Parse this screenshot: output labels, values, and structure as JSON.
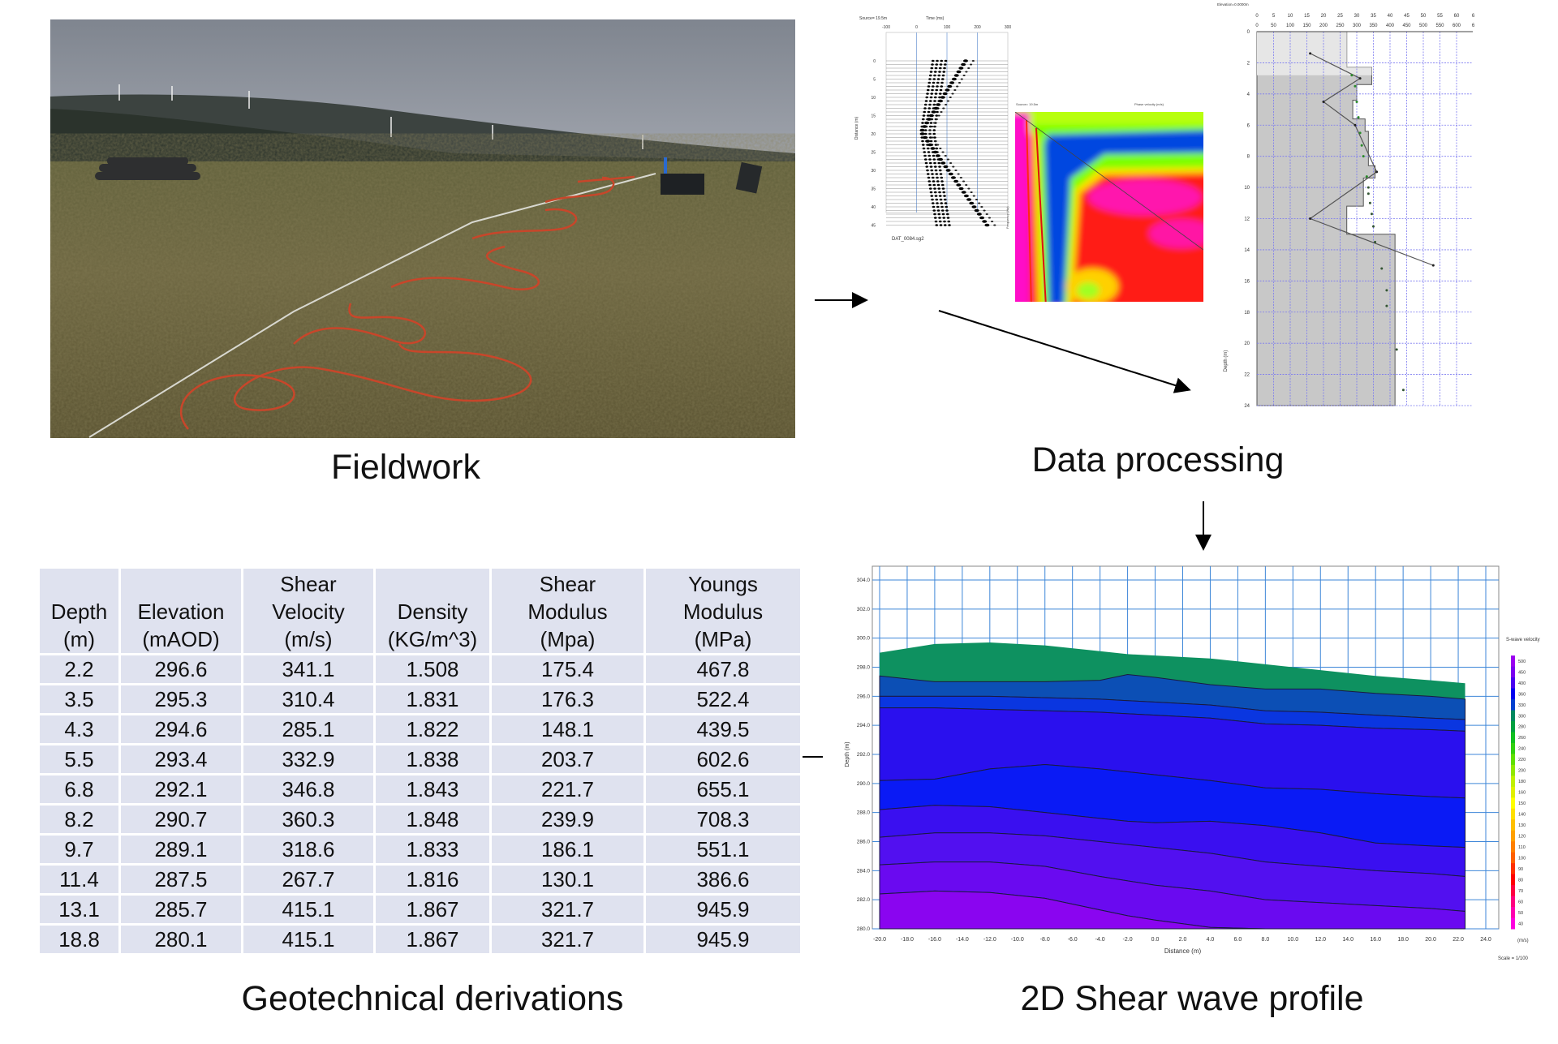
{
  "captions": {
    "fieldwork": "Fieldwork",
    "data_processing": "Data processing",
    "shear_profile": "2D Shear wave profile",
    "geotechnical": "Geotechnical derivations"
  },
  "seismic_traces": {
    "source_label": "Source= 19.5m",
    "time_label": "Time (ms)",
    "time_ticks": [
      "-100",
      "0",
      "100",
      "200",
      "300"
    ],
    "distance_label": "Distance (m)",
    "distance_ticks": [
      "0",
      "5",
      "10",
      "15",
      "20",
      "25",
      "30",
      "35",
      "40",
      "45"
    ],
    "file_label": "DAT_0084.sg2"
  },
  "dispersion": {
    "x_label": "Phase velocity (m/s)",
    "y_label": "Frequency (Hz)",
    "source_label": "Source= 19.5m"
  },
  "vs_profile": {
    "elevation_label": "Elevation=0.0000m",
    "top_ticks_a": [
      "0",
      "5",
      "10",
      "15",
      "20",
      "25",
      "30",
      "35",
      "40",
      "45",
      "50",
      "55",
      "60",
      "6"
    ],
    "top_ticks_b": [
      "0",
      "50",
      "100",
      "150",
      "200",
      "250",
      "300",
      "350",
      "400",
      "450",
      "500",
      "550",
      "600",
      "6"
    ],
    "depth_ticks": [
      "0",
      "2",
      "4",
      "6",
      "8",
      "10",
      "12",
      "14",
      "16",
      "18",
      "20",
      "22",
      "24"
    ],
    "depth_label": "Depth (m)",
    "steps": [
      [
        0,
        2.3,
        270
      ],
      [
        2.3,
        3.4,
        345
      ],
      [
        3.4,
        4.4,
        300
      ],
      [
        4.4,
        5.6,
        288
      ],
      [
        5.6,
        6.4,
        325
      ],
      [
        6.4,
        8.6,
        335
      ],
      [
        8.6,
        9.4,
        355
      ],
      [
        9.4,
        11.2,
        320
      ],
      [
        11.2,
        13.0,
        270
      ],
      [
        13.0,
        24,
        415
      ]
    ],
    "inverted_line": [
      [
        160,
        1.4
      ],
      [
        310,
        3.0
      ],
      [
        200,
        4.5
      ],
      [
        295,
        6.0
      ],
      [
        360,
        9.0
      ],
      [
        160,
        12.0
      ],
      [
        530,
        15.0
      ]
    ],
    "points": [
      [
        285,
        2.8
      ],
      [
        295,
        3.5
      ],
      [
        300,
        4.5
      ],
      [
        305,
        5.5
      ],
      [
        310,
        6.5
      ],
      [
        315,
        7.3
      ],
      [
        320,
        8.0
      ],
      [
        330,
        9.3
      ],
      [
        335,
        10.0
      ],
      [
        335,
        10.4
      ],
      [
        340,
        11.0
      ],
      [
        345,
        11.7
      ],
      [
        350,
        12.5
      ],
      [
        355,
        13.5
      ],
      [
        375,
        15.2
      ],
      [
        390,
        16.6
      ],
      [
        390,
        17.6
      ],
      [
        420,
        20.4
      ],
      [
        440,
        23.0
      ]
    ],
    "x_max": 600,
    "depth_max": 24
  },
  "table": {
    "headers": [
      [
        "Depth",
        "(m)"
      ],
      [
        "Elevation",
        "(mAOD)"
      ],
      [
        "Shear",
        "Velocity",
        "(m/s)"
      ],
      [
        "Density",
        "(KG/m^3)"
      ],
      [
        "Shear",
        "Modulus",
        "(Mpa)"
      ],
      [
        "Youngs",
        "Modulus",
        "(MPa)"
      ]
    ],
    "rows": [
      [
        "2.2",
        "296.6",
        "341.1",
        "1.508",
        "175.4",
        "467.8"
      ],
      [
        "3.5",
        "295.3",
        "310.4",
        "1.831",
        "176.3",
        "522.4"
      ],
      [
        "4.3",
        "294.6",
        "285.1",
        "1.822",
        "148.1",
        "439.5"
      ],
      [
        "5.5",
        "293.4",
        "332.9",
        "1.838",
        "203.7",
        "602.6"
      ],
      [
        "6.8",
        "292.1",
        "346.8",
        "1.843",
        "221.7",
        "655.1"
      ],
      [
        "8.2",
        "290.7",
        "360.3",
        "1.848",
        "239.9",
        "708.3"
      ],
      [
        "9.7",
        "289.1",
        "318.6",
        "1.833",
        "186.1",
        "551.1"
      ],
      [
        "11.4",
        "287.5",
        "267.7",
        "1.816",
        "130.1",
        "386.6"
      ],
      [
        "13.1",
        "285.7",
        "415.1",
        "1.867",
        "321.7",
        "945.9"
      ],
      [
        "18.8",
        "280.1",
        "415.1",
        "1.867",
        "321.7",
        "945.9"
      ]
    ]
  },
  "chart_data": {
    "type": "heatmap",
    "title": "2D Shear wave profile",
    "xlabel": "Distance (m)",
    "ylabel": "Depth (m)",
    "xlim": [
      -20,
      24
    ],
    "ylim": [
      280,
      304
    ],
    "x_ticks": [
      "-20.0",
      "-18.0",
      "-16.0",
      "-14.0",
      "-12.0",
      "-10.0",
      "-8.0",
      "-6.0",
      "-4.0",
      "-2.0",
      "0.0",
      "2.0",
      "4.0",
      "6.0",
      "8.0",
      "10.0",
      "12.0",
      "14.0",
      "16.0",
      "18.0",
      "20.0",
      "22.0",
      "24.0"
    ],
    "y_ticks": [
      "304.0",
      "302.0",
      "300.0",
      "298.0",
      "296.0",
      "294.0",
      "292.0",
      "290.0",
      "288.0",
      "286.0",
      "284.0",
      "282.0",
      "280.0"
    ],
    "legend_title": "S-wave velocity",
    "legend_unit": "(m/s)",
    "legend_values": [
      "500",
      "450",
      "400",
      "360",
      "330",
      "300",
      "280",
      "260",
      "240",
      "220",
      "200",
      "180",
      "160",
      "150",
      "140",
      "130",
      "120",
      "110",
      "100",
      "90",
      "80",
      "70",
      "60",
      "50",
      "40"
    ],
    "legend_colors": [
      "#9a00f0",
      "#7a00f0",
      "#4a00f0",
      "#0000f0",
      "#0040d0",
      "#008860",
      "#00a040",
      "#10c020",
      "#30d010",
      "#60e000",
      "#90e800",
      "#c0f000",
      "#e0f000",
      "#ffff00",
      "#ffe000",
      "#ffc000",
      "#ffa000",
      "#ff8000",
      "#ff6000",
      "#ff3000",
      "#ff0000",
      "#ff0040",
      "#ff0080",
      "#ff00b0",
      "#ff00e0"
    ],
    "scale_label": "Scale = 1/100",
    "x_samples": [
      -20,
      -16,
      -12,
      -8,
      -4,
      -2,
      0,
      4,
      8,
      12,
      16,
      20,
      22.5
    ],
    "surface": [
      299.0,
      299.6,
      299.7,
      299.5,
      299.1,
      298.9,
      298.8,
      298.6,
      298.2,
      297.8,
      297.4,
      297.1,
      296.9
    ],
    "boundaries": [
      [
        297.4,
        297.0,
        297.0,
        297.0,
        297.1,
        297.5,
        297.3,
        296.8,
        296.5,
        296.5,
        296.2,
        296.0,
        295.8
      ],
      [
        296.0,
        296.0,
        296.0,
        295.9,
        295.8,
        295.7,
        295.6,
        295.4,
        295.0,
        294.9,
        294.7,
        294.5,
        294.4
      ],
      [
        295.2,
        295.2,
        295.1,
        295.0,
        294.9,
        294.8,
        294.7,
        294.5,
        294.1,
        294.0,
        293.8,
        293.7,
        293.6
      ],
      [
        290.2,
        290.3,
        291.0,
        291.3,
        291.0,
        290.8,
        290.6,
        290.2,
        289.7,
        289.6,
        289.3,
        289.1,
        289.0
      ],
      [
        288.2,
        288.5,
        288.4,
        288.0,
        287.6,
        287.4,
        287.3,
        287.4,
        287.1,
        286.6,
        285.9,
        285.7,
        285.6
      ],
      [
        286.3,
        286.6,
        286.6,
        286.4,
        286.0,
        285.8,
        285.6,
        285.2,
        284.6,
        284.3,
        284.0,
        283.8,
        283.6
      ],
      [
        284.4,
        284.6,
        284.6,
        284.3,
        283.6,
        283.3,
        283.0,
        282.6,
        282.0,
        281.8,
        281.6,
        281.4,
        281.2
      ],
      [
        282.4,
        282.6,
        282.5,
        282.1,
        281.3,
        280.9,
        280.6,
        280.1,
        280.0,
        280.0,
        280.0,
        280.0,
        280.0
      ]
    ],
    "band_colors": [
      "#0e9160",
      "#0c4fb5",
      "#0a36e0",
      "#2a10ee",
      "#0a1af5",
      "#3a0ff0",
      "#5210f0",
      "#6a0af0",
      "#8a05f0"
    ]
  },
  "colors": {
    "cable": "#c8462a",
    "table_bg": "#dfe2ef"
  }
}
